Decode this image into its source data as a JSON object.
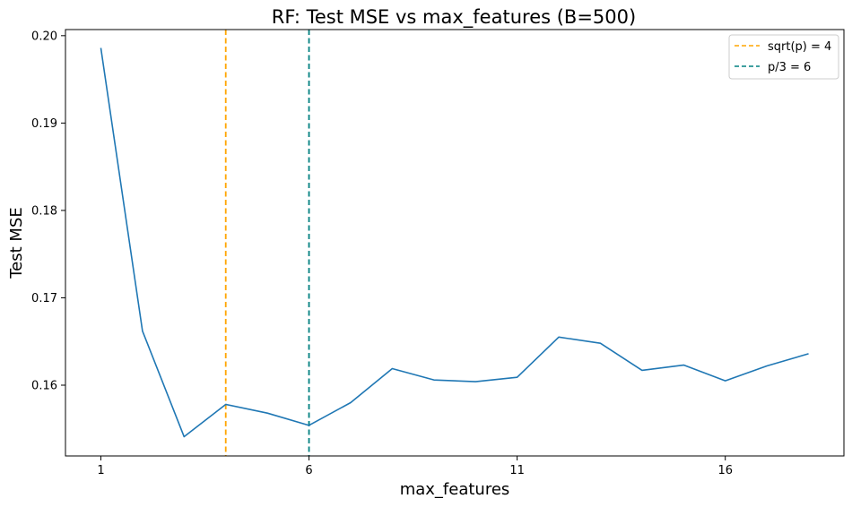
{
  "chart_data": {
    "type": "line",
    "title": "RF: Test MSE vs max_features (B=500)",
    "xlabel": "max_features",
    "ylabel": "Test MSE",
    "x": [
      1,
      2,
      3,
      4,
      5,
      6,
      7,
      8,
      9,
      10,
      11,
      12,
      13,
      14,
      15,
      16,
      17,
      18
    ],
    "series": [
      {
        "name": "",
        "color": "#1f77b4",
        "values": [
          0.1986,
          0.1662,
          0.1541,
          0.1578,
          0.1568,
          0.1554,
          0.158,
          0.1619,
          0.1606,
          0.1604,
          0.1609,
          0.1655,
          0.1648,
          0.1617,
          0.1623,
          0.1605,
          0.1622,
          0.1636
        ]
      }
    ],
    "reference_lines": [
      {
        "label": "sqrt(p) = 4",
        "x": 4,
        "color": "#ffa500",
        "style": "dashed"
      },
      {
        "label": "p/3 = 6",
        "x": 6,
        "color": "#008080",
        "style": "dashed"
      }
    ],
    "xticks": [
      1,
      6,
      11,
      16
    ],
    "xtick_labels": [
      "1",
      "6",
      "11",
      "16"
    ],
    "yticks": [
      0.16,
      0.17,
      0.18,
      0.19,
      0.2
    ],
    "ytick_labels": [
      "0.16",
      "0.17",
      "0.18",
      "0.19",
      "0.20"
    ],
    "xlim": [
      0.15,
      18.85
    ],
    "ylim": [
      0.1519,
      0.2007
    ],
    "grid": false,
    "legend_position": "top-right"
  }
}
